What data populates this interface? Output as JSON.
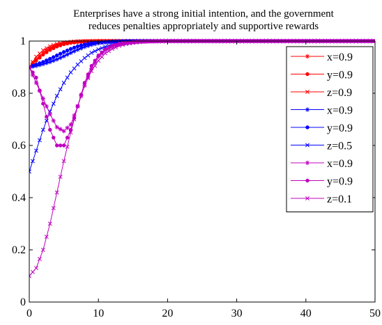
{
  "chart_data": {
    "type": "line",
    "title": [
      "Enterprises have a strong initial intention, and the government",
      "reduces penalties appropriately and supportive rewards"
    ],
    "xlabel": "",
    "ylabel": "",
    "xlim": [
      0,
      50
    ],
    "ylim": [
      0,
      1
    ],
    "xticks": [
      0,
      10,
      20,
      30,
      40,
      50
    ],
    "yticks": [
      0,
      0.2,
      0.4,
      0.6,
      0.8,
      1
    ],
    "ytick_labels": [
      "0",
      "0.2",
      "0.4",
      "0.6",
      "0.8",
      "1"
    ],
    "grid": false,
    "legend_position": "top-right",
    "series": [
      {
        "name": "x=0.9",
        "color": "#ff0000",
        "marker": "star",
        "x": [
          0,
          1,
          2,
          3,
          4,
          5,
          6,
          7,
          8,
          9,
          10,
          12,
          15,
          20,
          25,
          30,
          35,
          40,
          45,
          50
        ],
        "y": [
          0.9,
          0.93,
          0.955,
          0.972,
          0.984,
          0.991,
          0.995,
          0.998,
          0.999,
          1,
          1,
          1,
          1,
          1,
          1,
          1,
          1,
          1,
          1,
          1
        ]
      },
      {
        "name": "y=0.9",
        "color": "#ff0000",
        "marker": "dot",
        "x": [
          0,
          1,
          2,
          3,
          4,
          5,
          6,
          7,
          8,
          9,
          10,
          12,
          15,
          20,
          25,
          30,
          35,
          40,
          45,
          50
        ],
        "y": [
          0.9,
          0.925,
          0.948,
          0.966,
          0.979,
          0.988,
          0.993,
          0.996,
          0.998,
          0.999,
          1,
          1,
          1,
          1,
          1,
          1,
          1,
          1,
          1,
          1
        ]
      },
      {
        "name": "z=0.9",
        "color": "#ff0000",
        "marker": "x",
        "x": [
          0,
          1,
          2,
          3,
          4,
          5,
          6,
          7,
          8,
          9,
          10,
          12,
          15,
          20,
          25,
          30,
          35,
          40,
          45,
          50
        ],
        "y": [
          0.9,
          0.94,
          0.965,
          0.98,
          0.989,
          0.994,
          0.997,
          0.999,
          1,
          1,
          1,
          1,
          1,
          1,
          1,
          1,
          1,
          1,
          1,
          1
        ]
      },
      {
        "name": "x=0.9",
        "color": "#0000ff",
        "marker": "star",
        "x": [
          0,
          1,
          2,
          3,
          4,
          5,
          6,
          7,
          8,
          9,
          10,
          11,
          12,
          14,
          16,
          20,
          25,
          30,
          35,
          40,
          45,
          50
        ],
        "y": [
          0.9,
          0.905,
          0.912,
          0.92,
          0.93,
          0.942,
          0.955,
          0.967,
          0.978,
          0.986,
          0.992,
          0.995,
          0.997,
          0.999,
          1,
          1,
          1,
          1,
          1,
          1,
          1,
          1
        ]
      },
      {
        "name": "y=0.9",
        "color": "#0000ff",
        "marker": "dot",
        "x": [
          0,
          1,
          2,
          3,
          4,
          5,
          6,
          7,
          8,
          9,
          10,
          11,
          12,
          14,
          16,
          20,
          25,
          30,
          35,
          40,
          45,
          50
        ],
        "y": [
          0.9,
          0.91,
          0.92,
          0.932,
          0.945,
          0.958,
          0.97,
          0.98,
          0.987,
          0.992,
          0.995,
          0.997,
          0.998,
          1,
          1,
          1,
          1,
          1,
          1,
          1,
          1,
          1
        ]
      },
      {
        "name": "z=0.5",
        "color": "#0000ff",
        "marker": "x",
        "x": [
          0,
          1,
          2,
          3,
          4,
          5,
          6,
          7,
          8,
          9,
          10,
          11,
          12,
          13,
          14,
          15,
          16,
          18,
          20,
          25,
          30,
          35,
          40,
          45,
          50
        ],
        "y": [
          0.5,
          0.58,
          0.66,
          0.73,
          0.79,
          0.84,
          0.88,
          0.91,
          0.935,
          0.955,
          0.968,
          0.978,
          0.985,
          0.99,
          0.994,
          0.996,
          0.998,
          0.999,
          1,
          1,
          1,
          1,
          1,
          1,
          1
        ]
      },
      {
        "name": "x=0.9",
        "color": "#c000c0",
        "marker": "star",
        "x": [
          0,
          1,
          2,
          3,
          4,
          5,
          6,
          7,
          8,
          9,
          10,
          11,
          12,
          13,
          14,
          15,
          16,
          18,
          20,
          25,
          30,
          35,
          40,
          45,
          50
        ],
        "y": [
          0.9,
          0.84,
          0.78,
          0.72,
          0.67,
          0.655,
          0.68,
          0.75,
          0.83,
          0.895,
          0.94,
          0.965,
          0.98,
          0.988,
          0.993,
          0.996,
          0.998,
          0.999,
          1,
          1,
          1,
          1,
          1,
          1,
          1
        ]
      },
      {
        "name": "y=0.9",
        "color": "#c000c0",
        "marker": "dot",
        "x": [
          0,
          1,
          2,
          3,
          4,
          5,
          6,
          7,
          8,
          9,
          10,
          11,
          12,
          13,
          14,
          15,
          16,
          18,
          20,
          25,
          30,
          35,
          40,
          45,
          50
        ],
        "y": [
          0.9,
          0.86,
          0.76,
          0.66,
          0.6,
          0.6,
          0.66,
          0.75,
          0.84,
          0.905,
          0.945,
          0.968,
          0.982,
          0.99,
          0.994,
          0.997,
          0.998,
          0.999,
          1,
          1,
          1,
          1,
          1,
          1,
          1
        ]
      },
      {
        "name": "z=0.1",
        "color": "#c000c0",
        "marker": "x",
        "x": [
          0,
          1,
          2,
          3,
          4,
          5,
          6,
          7,
          8,
          9,
          10,
          11,
          12,
          13,
          14,
          15,
          16,
          17,
          18,
          20,
          25,
          30,
          35,
          40,
          45,
          50
        ],
        "y": [
          0.1,
          0.13,
          0.2,
          0.3,
          0.42,
          0.54,
          0.65,
          0.75,
          0.83,
          0.885,
          0.925,
          0.953,
          0.97,
          0.982,
          0.989,
          0.993,
          0.996,
          0.998,
          0.999,
          1,
          1,
          1,
          1,
          1,
          1,
          1
        ]
      }
    ]
  }
}
